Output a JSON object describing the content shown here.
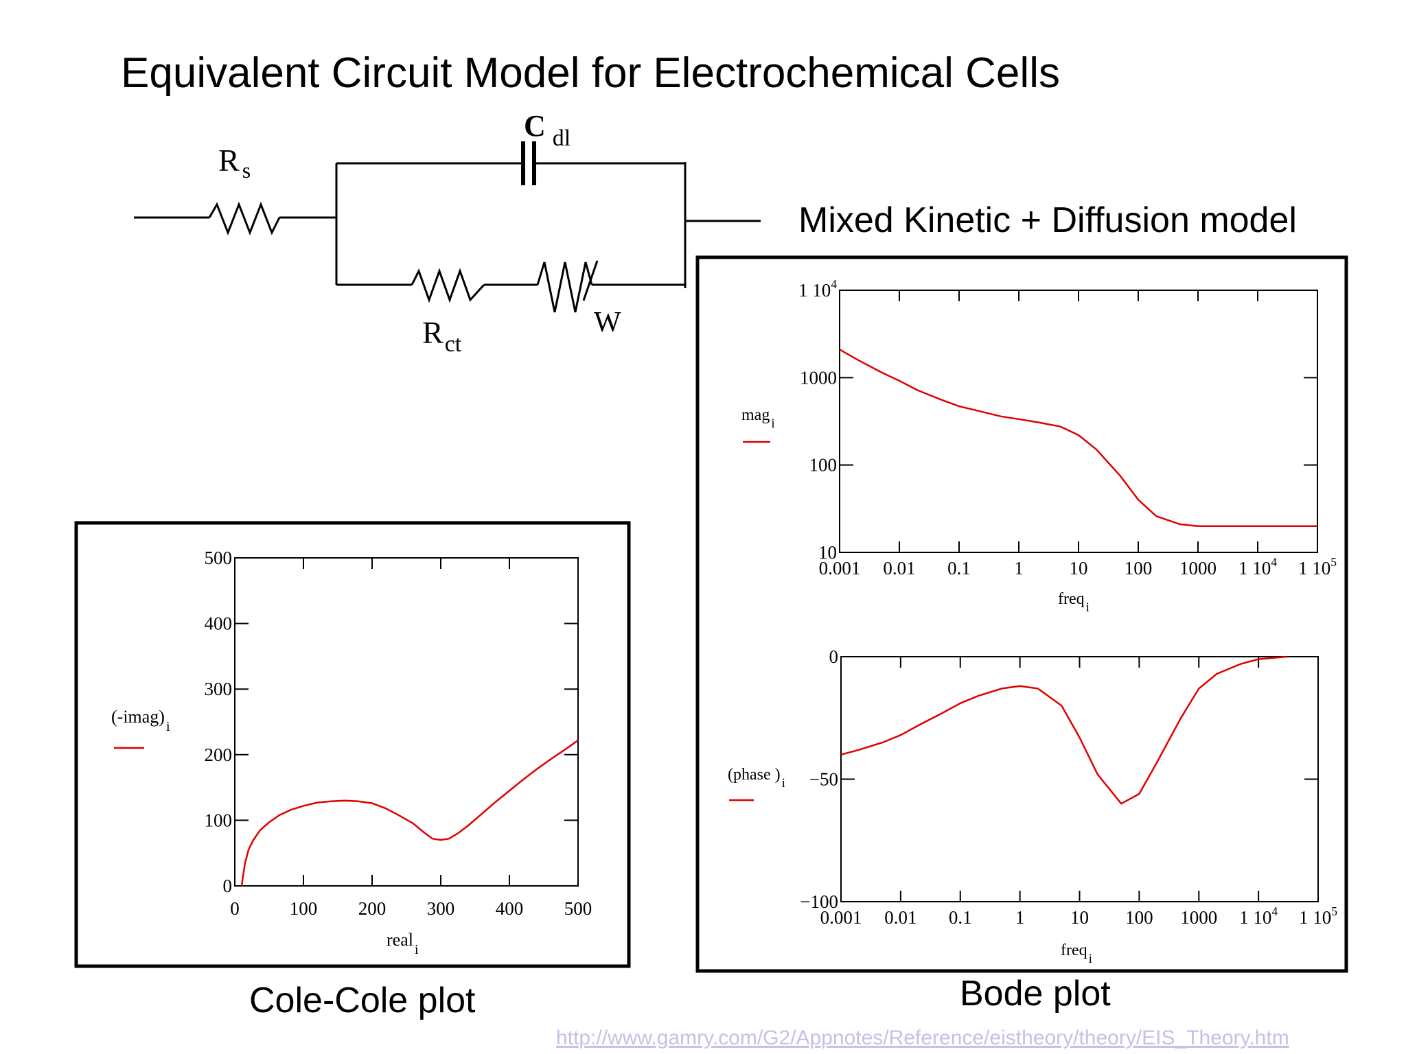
{
  "title": "Equivalent Circuit Model for Electrochemical Cells",
  "circuit": {
    "rs_main": "R",
    "rs_sub": "s",
    "cdl_main": "C",
    "cdl_sub": "dl",
    "rct_main": "R",
    "rct_sub": "ct",
    "w_label": "W"
  },
  "model_label": "Mixed Kinetic + Diffusion model",
  "cole_caption": "Cole-Cole plot",
  "bode_caption": "Bode plot",
  "source_url": "http://www.gamry.com/G2/Appnotes/Reference/eistheory/theory/EIS_Theory.htm",
  "chart_data": [
    {
      "type": "line",
      "name": "cole-cole",
      "xlabel_main": "real",
      "xlabel_sub": "i",
      "ylabel_main": "(-imag)",
      "ylabel_sub": "i",
      "xlim": [
        0,
        500
      ],
      "ylim": [
        0,
        500
      ],
      "xticks": [
        "0",
        "100",
        "200",
        "300",
        "400",
        "500"
      ],
      "yticks": [
        "0",
        "100",
        "200",
        "300",
        "400",
        "500"
      ],
      "x": [
        10,
        12,
        15,
        20,
        27,
        37,
        50,
        65,
        82,
        100,
        120,
        140,
        160,
        180,
        200,
        220,
        240,
        260,
        275,
        288,
        300,
        312,
        325,
        340,
        360,
        380,
        400,
        420,
        440,
        460,
        480,
        500
      ],
      "y": [
        0,
        15,
        35,
        55,
        70,
        85,
        97,
        108,
        116,
        122,
        127,
        129,
        130,
        129,
        126,
        118,
        107,
        95,
        82,
        72,
        70,
        72,
        80,
        92,
        110,
        128,
        145,
        162,
        178,
        193,
        207,
        222
      ]
    },
    {
      "type": "line",
      "name": "bode-magnitude",
      "xscale": "log",
      "yscale": "log",
      "xlabel_main": "freq",
      "xlabel_sub": "i",
      "ylabel_main": "mag",
      "ylabel_sub": "i",
      "xlim": [
        0.001,
        100000
      ],
      "ylim": [
        10,
        10000
      ],
      "xticks": [
        "0.001",
        "0.01",
        "0.1",
        "1",
        "10",
        "100",
        "1000",
        "1 10",
        "1 10"
      ],
      "xtick_sups": [
        "",
        "",
        "",
        "",
        "",
        "",
        "",
        "4",
        "5"
      ],
      "yticks": [
        "10",
        "100",
        "1000",
        "1 10"
      ],
      "ytick_sups": [
        "",
        "",
        "",
        "4"
      ],
      "x": [
        0.001,
        0.002,
        0.005,
        0.01,
        0.02,
        0.05,
        0.1,
        0.2,
        0.5,
        1,
        2,
        5,
        10,
        20,
        50,
        100,
        200,
        500,
        1000,
        2000,
        5000,
        10000,
        100000
      ],
      "y": [
        2100,
        1600,
        1150,
        920,
        720,
        560,
        470,
        420,
        360,
        335,
        310,
        275,
        220,
        150,
        75,
        40,
        26,
        21,
        20,
        20,
        20,
        20,
        20
      ]
    },
    {
      "type": "line",
      "name": "bode-phase",
      "xscale": "log",
      "xlabel_main": "freq",
      "xlabel_sub": "i",
      "ylabel_main": "(phase )",
      "ylabel_sub": "i",
      "xlim": [
        0.001,
        100000
      ],
      "ylim": [
        -100,
        0
      ],
      "xticks": [
        "0.001",
        "0.01",
        "0.1",
        "1",
        "10",
        "100",
        "1000",
        "1 10",
        "1 10"
      ],
      "xtick_sups": [
        "",
        "",
        "",
        "",
        "",
        "",
        "",
        "4",
        "5"
      ],
      "yticks": [
        "-100",
        "-50",
        "0"
      ],
      "x": [
        0.001,
        0.002,
        0.005,
        0.01,
        0.02,
        0.05,
        0.1,
        0.2,
        0.5,
        1,
        2,
        5,
        10,
        20,
        50,
        100,
        200,
        500,
        1000,
        2000,
        5000,
        10000,
        30000
      ],
      "y": [
        -40,
        -38,
        -35,
        -32,
        -28,
        -23,
        -19,
        -16,
        -13,
        -12,
        -13,
        -20,
        -33,
        -48,
        -60,
        -56,
        -43,
        -25,
        -13,
        -7,
        -3,
        -1,
        0
      ]
    }
  ]
}
